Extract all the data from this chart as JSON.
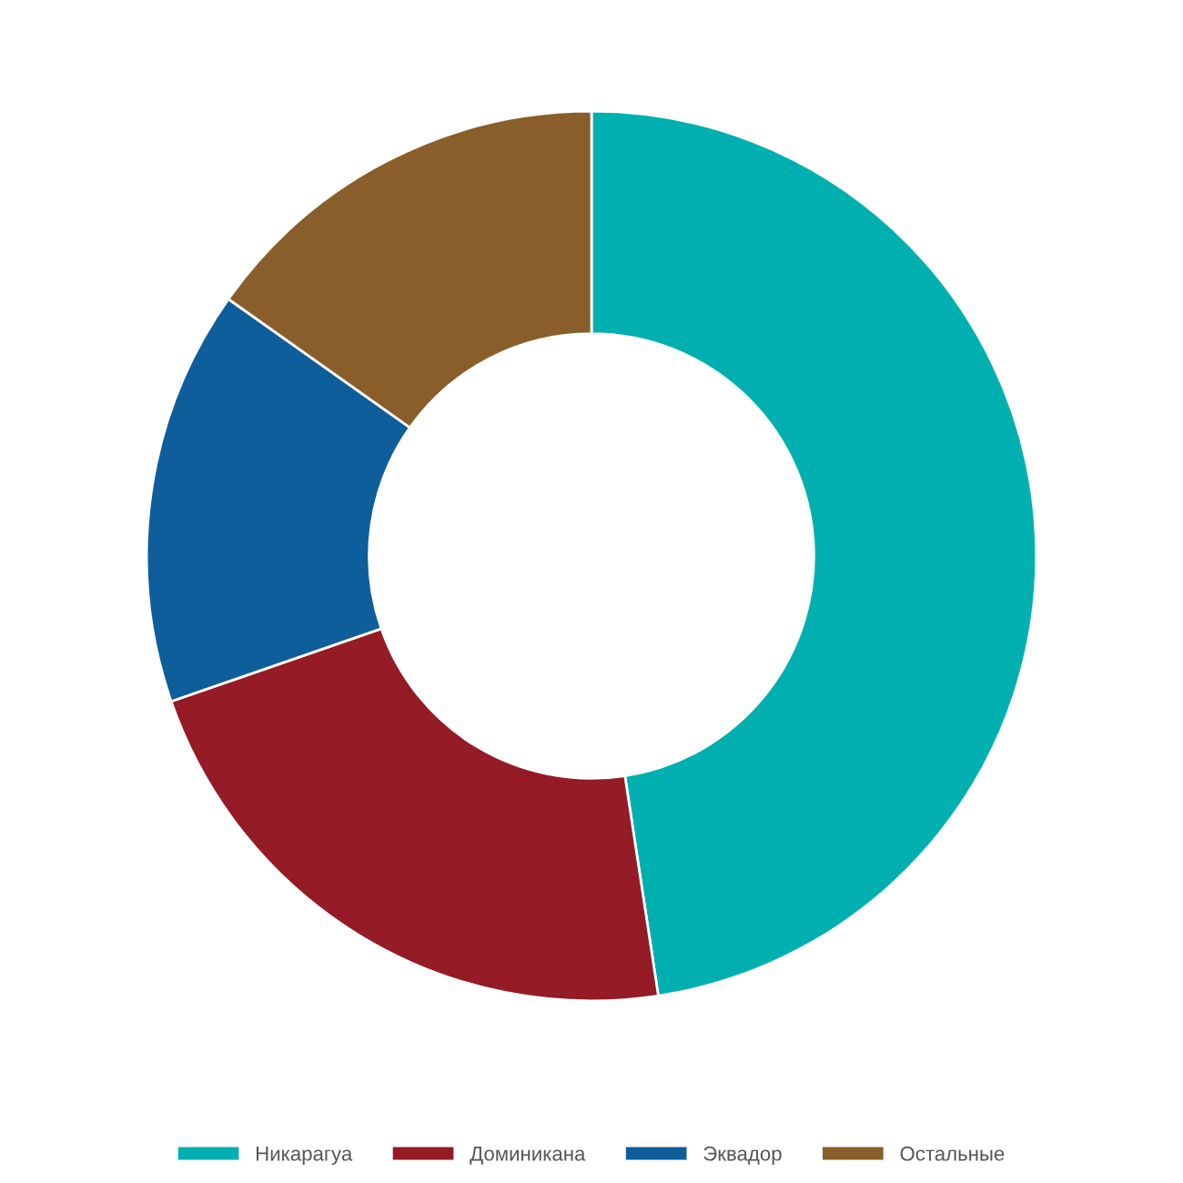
{
  "chart_data": {
    "type": "donut",
    "categories": [
      "Никарагуа",
      "Доминикана",
      "Эквадор",
      "Остальные"
    ],
    "values": [
      47.6,
      22.1,
      15.1,
      15.2
    ],
    "colors": [
      "#00b0b0",
      "#951b26",
      "#0e5e9c",
      "#8a5e2a"
    ],
    "legend": "bottom"
  }
}
